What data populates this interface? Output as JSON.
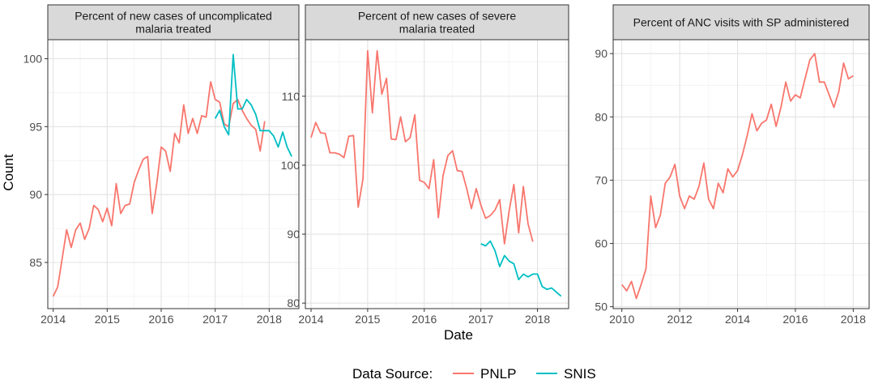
{
  "figure": {
    "ylabel": "Count",
    "xlabel": "Date",
    "legend": {
      "title": "Data Source:",
      "position": "bottom",
      "entries": [
        {
          "name": "PNLP",
          "color": "#F8766D"
        },
        {
          "name": "SNIS",
          "color": "#00BFC4"
        }
      ]
    }
  },
  "chart_data": [
    {
      "type": "line",
      "title": "Percent of new cases of uncomplicated malaria treated",
      "title_lines": [
        "Percent of new cases of uncomplicated",
        "malaria treated"
      ],
      "xlim": [
        2013.9,
        2018.55
      ],
      "ylim": [
        81.6,
        101.4
      ],
      "xticks": [
        2014,
        2015,
        2016,
        2017,
        2018
      ],
      "yticks": [
        85,
        90,
        95,
        100
      ],
      "grid": true,
      "series": [
        {
          "name": "PNLP",
          "color": "#F8766D",
          "x": [
            2014.0,
            2014.083,
            2014.167,
            2014.25,
            2014.333,
            2014.417,
            2014.5,
            2014.583,
            2014.667,
            2014.75,
            2014.833,
            2014.917,
            2015.0,
            2015.083,
            2015.167,
            2015.25,
            2015.333,
            2015.417,
            2015.5,
            2015.583,
            2015.667,
            2015.75,
            2015.833,
            2015.917,
            2016.0,
            2016.083,
            2016.167,
            2016.25,
            2016.333,
            2016.417,
            2016.5,
            2016.583,
            2016.667,
            2016.75,
            2016.833,
            2016.917,
            2017.0,
            2017.083,
            2017.167,
            2017.25,
            2017.333,
            2017.417,
            2017.5,
            2017.583,
            2017.667,
            2017.75,
            2017.833,
            2017.917
          ],
          "y": [
            82.5,
            83.2,
            85.3,
            87.4,
            86.1,
            87.4,
            87.9,
            86.7,
            87.5,
            89.2,
            88.9,
            88.0,
            89.0,
            87.7,
            90.8,
            88.6,
            89.2,
            89.3,
            90.9,
            91.8,
            92.6,
            92.8,
            88.6,
            90.8,
            93.5,
            93.2,
            91.7,
            94.5,
            93.8,
            96.6,
            94.5,
            95.6,
            94.5,
            95.8,
            95.7,
            98.3,
            97.0,
            96.8,
            95.2,
            95.0,
            96.7,
            97.0,
            96.2,
            95.6,
            95.1,
            94.8,
            93.2,
            95.4
          ]
        },
        {
          "name": "SNIS",
          "color": "#00BFC4",
          "x": [
            2017.0,
            2017.083,
            2017.167,
            2017.25,
            2017.333,
            2017.417,
            2017.5,
            2017.583,
            2017.667,
            2017.75,
            2017.833,
            2017.917,
            2018.0,
            2018.083,
            2018.167,
            2018.25,
            2018.333,
            2018.417
          ],
          "y": [
            95.6,
            96.2,
            95.0,
            94.4,
            100.3,
            96.3,
            96.3,
            97.0,
            96.6,
            95.9,
            94.7,
            94.7,
            94.7,
            94.3,
            93.5,
            94.6,
            93.5,
            92.8
          ]
        }
      ]
    },
    {
      "type": "line",
      "title": "Percent of new cases of severe malaria treated",
      "title_lines": [
        "Percent of new cases of severe",
        "malaria treated"
      ],
      "xlim": [
        2013.9,
        2018.55
      ],
      "ylim": [
        79.2,
        118.2
      ],
      "xticks": [
        2014,
        2015,
        2016,
        2017,
        2018
      ],
      "yticks": [
        80,
        90,
        100,
        110
      ],
      "grid": true,
      "series": [
        {
          "name": "PNLP",
          "color": "#F8766D",
          "x": [
            2014.0,
            2014.083,
            2014.167,
            2014.25,
            2014.333,
            2014.417,
            2014.5,
            2014.583,
            2014.667,
            2014.75,
            2014.833,
            2014.917,
            2015.0,
            2015.083,
            2015.167,
            2015.25,
            2015.333,
            2015.417,
            2015.5,
            2015.583,
            2015.667,
            2015.75,
            2015.833,
            2015.917,
            2016.0,
            2016.083,
            2016.167,
            2016.25,
            2016.333,
            2016.417,
            2016.5,
            2016.583,
            2016.667,
            2016.75,
            2016.833,
            2016.917,
            2017.0,
            2017.083,
            2017.167,
            2017.25,
            2017.333,
            2017.417,
            2017.5,
            2017.583,
            2017.667,
            2017.75,
            2017.833,
            2017.917
          ],
          "y": [
            104.0,
            106.2,
            104.7,
            104.6,
            101.8,
            101.8,
            101.6,
            101.1,
            104.2,
            104.3,
            93.9,
            98.0,
            116.6,
            107.6,
            116.6,
            110.3,
            112.6,
            103.8,
            103.7,
            107.0,
            103.4,
            104.0,
            107.3,
            97.8,
            97.5,
            96.6,
            100.8,
            92.4,
            98.5,
            101.4,
            102.1,
            99.2,
            99.1,
            96.6,
            93.7,
            96.6,
            94.2,
            92.3,
            92.7,
            93.5,
            95.0,
            88.6,
            93.4,
            97.2,
            90.2,
            96.9,
            91.5,
            88.9
          ]
        },
        {
          "name": "SNIS",
          "color": "#00BFC4",
          "x": [
            2017.0,
            2017.083,
            2017.167,
            2017.25,
            2017.333,
            2017.417,
            2017.5,
            2017.583,
            2017.667,
            2017.75,
            2017.833,
            2017.917,
            2018.0,
            2018.083,
            2018.167,
            2018.25,
            2018.333,
            2018.417
          ],
          "y": [
            88.6,
            88.3,
            89.0,
            87.6,
            85.3,
            86.9,
            86.1,
            85.7,
            83.4,
            84.2,
            83.8,
            84.2,
            84.2,
            82.4,
            82.0,
            82.2,
            81.6,
            81.0
          ]
        }
      ]
    },
    {
      "type": "line",
      "title": "Percent of ANC visits with SP administered",
      "title_lines": [
        "Percent of ANC visits with SP administered"
      ],
      "xlim": [
        9.7,
        18.55
      ],
      "ylim": [
        49.7,
        92.2
      ],
      "xticks": [
        10,
        12,
        14,
        16,
        18
      ],
      "xticklabels": [
        "2010",
        "2012",
        "2014",
        "2016",
        "2018"
      ],
      "yticks": [
        50,
        60,
        70,
        80,
        90
      ],
      "grid": true,
      "series": [
        {
          "name": "PNLP",
          "color": "#F8766D",
          "x": [
            10.0,
            10.167,
            10.333,
            10.5,
            10.667,
            10.833,
            11.0,
            11.167,
            11.333,
            11.5,
            11.667,
            11.833,
            12.0,
            12.167,
            12.333,
            12.5,
            12.667,
            12.833,
            13.0,
            13.167,
            13.333,
            13.5,
            13.667,
            13.833,
            14.0,
            14.167,
            14.333,
            14.5,
            14.667,
            14.833,
            15.0,
            15.167,
            15.333,
            15.5,
            15.667,
            15.833,
            16.0,
            16.167,
            16.333,
            16.5,
            16.667,
            16.833,
            17.0,
            17.167,
            17.333,
            17.5,
            17.667,
            17.833,
            18.0
          ],
          "y": [
            53.5,
            52.5,
            54.0,
            51.3,
            53.5,
            56.0,
            67.5,
            62.5,
            64.5,
            69.5,
            70.5,
            72.5,
            67.5,
            65.5,
            67.5,
            67.0,
            69.0,
            72.7,
            67.0,
            65.5,
            69.5,
            68.0,
            71.8,
            70.5,
            71.5,
            74.0,
            77.0,
            80.5,
            77.8,
            79.0,
            79.5,
            82.0,
            78.5,
            81.5,
            85.5,
            82.5,
            83.5,
            83.0,
            86.0,
            89.0,
            90.0,
            85.5,
            85.5,
            83.5,
            81.5,
            84.0,
            88.5,
            86.0,
            86.5
          ]
        }
      ]
    }
  ]
}
